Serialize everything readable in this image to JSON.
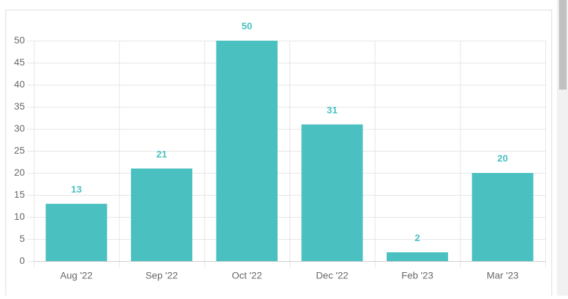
{
  "chart_data": {
    "type": "bar",
    "categories": [
      "Aug '22",
      "Sep '22",
      "Oct '22",
      "Dec '22",
      "Feb '23",
      "Mar '23"
    ],
    "values": [
      13,
      21,
      50,
      31,
      2,
      20
    ],
    "color": "#4bc0c0",
    "ylim": [
      0,
      50
    ],
    "yticks": [
      0,
      5,
      10,
      15,
      20,
      25,
      30,
      35,
      40,
      45,
      50
    ],
    "grid": true,
    "data_labels": true
  }
}
